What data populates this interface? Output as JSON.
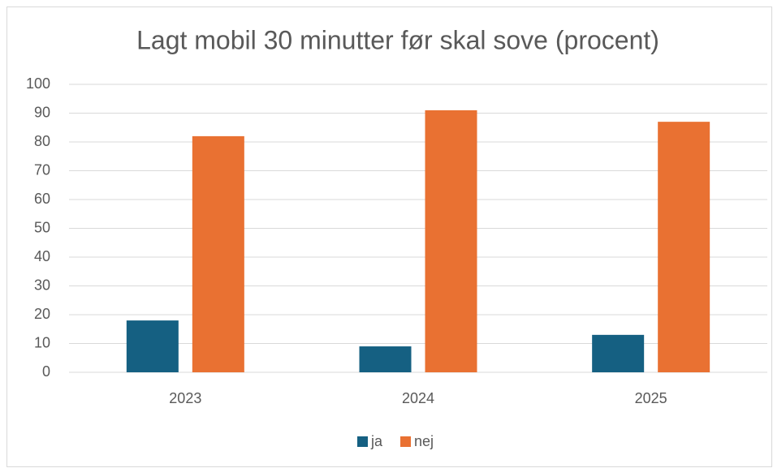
{
  "chart_data": {
    "type": "bar",
    "title": "Lagt mobil 30 minutter før skal sove (procent)",
    "categories": [
      "2023",
      "2024",
      "2025"
    ],
    "series": [
      {
        "name": "ja",
        "color": "#156082",
        "values": [
          18,
          9,
          13
        ]
      },
      {
        "name": "nej",
        "color": "#e97132",
        "values": [
          82,
          91,
          87
        ]
      }
    ],
    "ylim": [
      0,
      100
    ],
    "yticks": [
      0,
      10,
      20,
      30,
      40,
      50,
      60,
      70,
      80,
      90,
      100
    ],
    "grid": true,
    "legend": "bottom"
  }
}
